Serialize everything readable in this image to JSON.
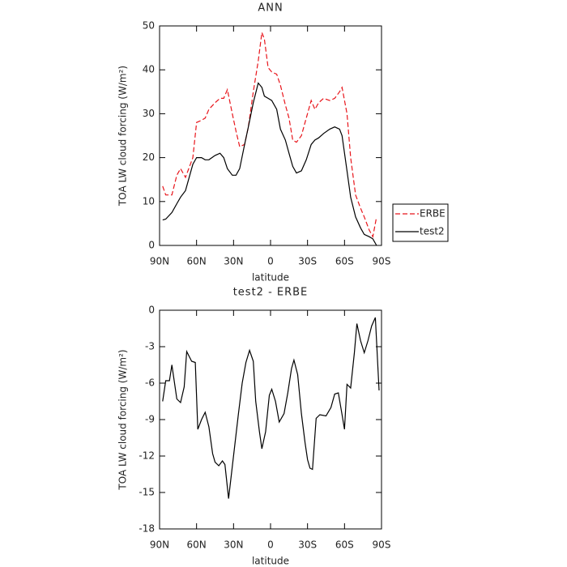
{
  "chart_data": [
    {
      "type": "line",
      "title": "ANN",
      "x_label": "latitude",
      "y_label": "TOA LW cloud forcing (W/m²)",
      "x": [
        87.5,
        85,
        80,
        76,
        73,
        69,
        63,
        60,
        56,
        53,
        50,
        45,
        41,
        38,
        35,
        31,
        28,
        25,
        21,
        18,
        14,
        10,
        7,
        5,
        2,
        -1,
        -5,
        -8,
        -12,
        -15,
        -18,
        -21,
        -25,
        -29,
        -33,
        -36,
        -39,
        -43,
        -48,
        -52,
        -56,
        -58,
        -62,
        -65,
        -69,
        -73,
        -76,
        -80,
        -83,
        -86
      ],
      "series": [
        {
          "name": "ERBE",
          "color": "#e8151b",
          "dash": "dashed",
          "values": [
            13.5,
            11.5,
            11.5,
            16,
            17.5,
            15.5,
            20,
            28,
            28.5,
            29,
            31,
            32.5,
            33.5,
            33.5,
            35.5,
            30,
            26,
            22.5,
            23,
            27,
            35,
            42,
            48.5,
            47,
            40.5,
            39.5,
            39,
            36.5,
            32,
            29,
            24,
            23.5,
            25,
            29,
            33,
            31,
            32.5,
            33.5,
            33,
            33.5,
            35,
            36,
            30,
            20,
            11.5,
            8.5,
            6.5,
            3.5,
            2,
            6.5
          ]
        },
        {
          "name": "test2",
          "color": "#000000",
          "dash": "solid",
          "values": [
            5.8,
            6,
            7.5,
            9.5,
            11,
            12.5,
            18.5,
            20,
            20,
            19.5,
            19.5,
            20.5,
            21,
            20,
            17.5,
            16,
            16,
            17.5,
            23,
            27,
            32.5,
            37,
            36,
            34,
            33.5,
            33,
            31,
            26.5,
            24,
            21,
            18,
            16.5,
            17,
            19.5,
            23,
            24,
            24.5,
            25.5,
            26.5,
            27,
            26.5,
            25,
            17,
            11,
            6.5,
            4,
            2.5,
            2,
            1.5,
            0
          ]
        }
      ],
      "xlim": [
        90,
        -90
      ],
      "xticks": [
        {
          "value": 90,
          "label": "90N"
        },
        {
          "value": 60,
          "label": "60N"
        },
        {
          "value": 30,
          "label": "30N"
        },
        0,
        {
          "value": -30,
          "label": "30S"
        },
        {
          "value": -60,
          "label": "60S"
        },
        {
          "value": -90,
          "label": "90S"
        }
      ],
      "ylim": [
        0,
        50
      ],
      "yticks": [
        0,
        10,
        20,
        30,
        40,
        50
      ],
      "legend": "right"
    },
    {
      "type": "line",
      "title": "test2 - ERBE",
      "x_label": "latitude",
      "y_label": "TOA LW cloud forcing (W/m²)",
      "x": [
        87.5,
        85,
        82,
        80,
        76,
        73,
        70,
        68,
        64,
        61,
        59,
        56,
        53,
        50,
        47,
        45,
        42,
        39,
        37,
        34,
        30,
        26,
        23,
        20,
        17,
        14,
        12,
        9,
        7,
        4,
        1,
        -1,
        -4,
        -7,
        -11,
        -14,
        -17,
        -19,
        -22,
        -25,
        -28,
        -30,
        -32,
        -34,
        -37,
        -40,
        -45,
        -49,
        -52,
        -55,
        -58,
        -60,
        -62,
        -65,
        -68,
        -70,
        -73,
        -76,
        -79,
        -82,
        -85,
        -88
      ],
      "series": [
        {
          "color": "#000000",
          "dash": "solid",
          "values": [
            -7.5,
            -5.8,
            -5.8,
            -4.5,
            -7.3,
            -7.6,
            -6.3,
            -3.4,
            -4.2,
            -4.3,
            -9.8,
            -9,
            -8.4,
            -9.6,
            -11.8,
            -12.5,
            -12.8,
            -12.4,
            -12.7,
            -15.5,
            -12,
            -8.5,
            -6,
            -4.3,
            -3.3,
            -4.2,
            -7.5,
            -10,
            -11.4,
            -10,
            -7,
            -6.5,
            -7.5,
            -9.2,
            -8.5,
            -6.8,
            -4.8,
            -4.1,
            -5.3,
            -8.5,
            -10.9,
            -12.3,
            -13,
            -13.1,
            -8.9,
            -8.6,
            -8.7,
            -8,
            -6.9,
            -6.8,
            -8.6,
            -9.8,
            -6.1,
            -6.4,
            -3.5,
            -1.1,
            -2.5,
            -3.5,
            -2.5,
            -1.3,
            -0.6,
            -6.6
          ]
        }
      ],
      "xlim": [
        90,
        -90
      ],
      "xticks": [
        {
          "value": 90,
          "label": "90N"
        },
        {
          "value": 60,
          "label": "60N"
        },
        {
          "value": 30,
          "label": "30N"
        },
        0,
        {
          "value": -30,
          "label": "30S"
        },
        {
          "value": -60,
          "label": "60S"
        },
        {
          "value": -90,
          "label": "90S"
        }
      ],
      "ylim": [
        -18,
        0
      ],
      "yticks": [
        0,
        -3,
        -6,
        -9,
        -12,
        -15,
        -18
      ]
    }
  ]
}
